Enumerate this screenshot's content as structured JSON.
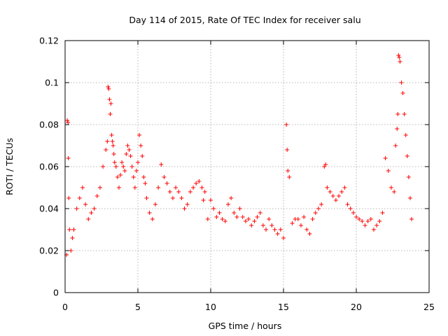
{
  "chart_data": {
    "type": "scatter",
    "title": "Day 114 of 2015, Rate Of TEC Index for receiver salu",
    "xlabel": "GPS time / hours",
    "ylabel": "ROTI / TECUs",
    "xlim": [
      0,
      25
    ],
    "ylim": [
      0,
      0.12
    ],
    "x_ticks": [
      0,
      5,
      10,
      15,
      20,
      25
    ],
    "x_tick_labels": [
      "0",
      "5",
      "10",
      "15",
      "20",
      "25"
    ],
    "y_ticks": [
      0,
      0.02,
      0.04,
      0.06,
      0.08,
      0.1,
      0.12
    ],
    "y_tick_labels": [
      "0",
      "0.02",
      "0.04",
      "0.06",
      "0.08",
      "0.1",
      "0.12"
    ],
    "grid": true,
    "legend": "none",
    "marker": "+",
    "color": "#ff0000",
    "series": [
      {
        "x": [
          0.15,
          0.2,
          0.22,
          0.25,
          0.3,
          0.1,
          0.4,
          0.5,
          0.6,
          0.8,
          1.0,
          1.2,
          1.4,
          1.6,
          1.8,
          2.0,
          2.2,
          2.4,
          2.6,
          2.8,
          2.9,
          2.95,
          3.0,
          3.05,
          3.1,
          3.15,
          3.2,
          3.25,
          3.3,
          3.35,
          3.4,
          3.5,
          3.6,
          3.7,
          3.8,
          3.9,
          4.0,
          4.1,
          4.2,
          4.3,
          4.4,
          4.5,
          4.6,
          4.7,
          4.8,
          4.9,
          5.0,
          5.1,
          5.2,
          5.3,
          5.4,
          5.5,
          5.6,
          5.8,
          6.0,
          6.2,
          6.4,
          6.6,
          6.8,
          7.0,
          7.2,
          7.4,
          7.6,
          7.8,
          8.0,
          8.2,
          8.4,
          8.6,
          8.8,
          9.0,
          9.2,
          9.4,
          9.5,
          9.6,
          9.8,
          10.0,
          10.2,
          10.4,
          10.6,
          10.8,
          11.0,
          11.2,
          11.4,
          11.6,
          11.8,
          12.0,
          12.2,
          12.4,
          12.6,
          12.8,
          13.0,
          13.2,
          13.4,
          13.6,
          13.8,
          14.0,
          14.2,
          14.4,
          14.6,
          14.8,
          15.0,
          15.2,
          15.25,
          15.3,
          15.4,
          15.6,
          15.8,
          16.0,
          16.2,
          16.4,
          16.6,
          16.8,
          17.0,
          17.2,
          17.4,
          17.6,
          17.8,
          17.9,
          18.0,
          18.2,
          18.4,
          18.6,
          18.8,
          19.0,
          19.2,
          19.4,
          19.6,
          19.8,
          20.0,
          20.2,
          20.4,
          20.6,
          20.8,
          21.0,
          21.2,
          21.4,
          21.6,
          21.8,
          22.0,
          22.2,
          22.4,
          22.6,
          22.7,
          22.8,
          22.85,
          22.9,
          22.95,
          23.0,
          23.1,
          23.2,
          23.3,
          23.4,
          23.5,
          23.6,
          23.7,
          23.8
        ],
        "y": [
          0.082,
          0.081,
          0.064,
          0.045,
          0.03,
          0.018,
          0.02,
          0.026,
          0.03,
          0.04,
          0.045,
          0.05,
          0.042,
          0.035,
          0.038,
          0.04,
          0.046,
          0.05,
          0.06,
          0.068,
          0.072,
          0.098,
          0.097,
          0.092,
          0.085,
          0.09,
          0.075,
          0.072,
          0.07,
          0.066,
          0.062,
          0.06,
          0.055,
          0.05,
          0.056,
          0.062,
          0.06,
          0.058,
          0.066,
          0.07,
          0.068,
          0.065,
          0.06,
          0.055,
          0.05,
          0.058,
          0.062,
          0.075,
          0.07,
          0.065,
          0.055,
          0.052,
          0.045,
          0.038,
          0.035,
          0.042,
          0.05,
          0.061,
          0.055,
          0.052,
          0.048,
          0.045,
          0.05,
          0.048,
          0.045,
          0.04,
          0.042,
          0.048,
          0.05,
          0.052,
          0.053,
          0.05,
          0.044,
          0.048,
          0.035,
          0.044,
          0.04,
          0.036,
          0.038,
          0.035,
          0.034,
          0.042,
          0.045,
          0.038,
          0.036,
          0.04,
          0.036,
          0.034,
          0.035,
          0.032,
          0.034,
          0.036,
          0.038,
          0.032,
          0.03,
          0.035,
          0.032,
          0.03,
          0.028,
          0.03,
          0.026,
          0.08,
          0.068,
          0.058,
          0.055,
          0.033,
          0.035,
          0.035,
          0.032,
          0.036,
          0.03,
          0.028,
          0.035,
          0.038,
          0.04,
          0.042,
          0.06,
          0.061,
          0.05,
          0.048,
          0.046,
          0.044,
          0.046,
          0.048,
          0.05,
          0.042,
          0.04,
          0.038,
          0.036,
          0.035,
          0.034,
          0.032,
          0.034,
          0.035,
          0.03,
          0.032,
          0.034,
          0.038,
          0.064,
          0.058,
          0.05,
          0.048,
          0.07,
          0.078,
          0.085,
          0.113,
          0.112,
          0.11,
          0.1,
          0.095,
          0.085,
          0.075,
          0.065,
          0.055,
          0.045,
          0.035
        ]
      }
    ]
  }
}
